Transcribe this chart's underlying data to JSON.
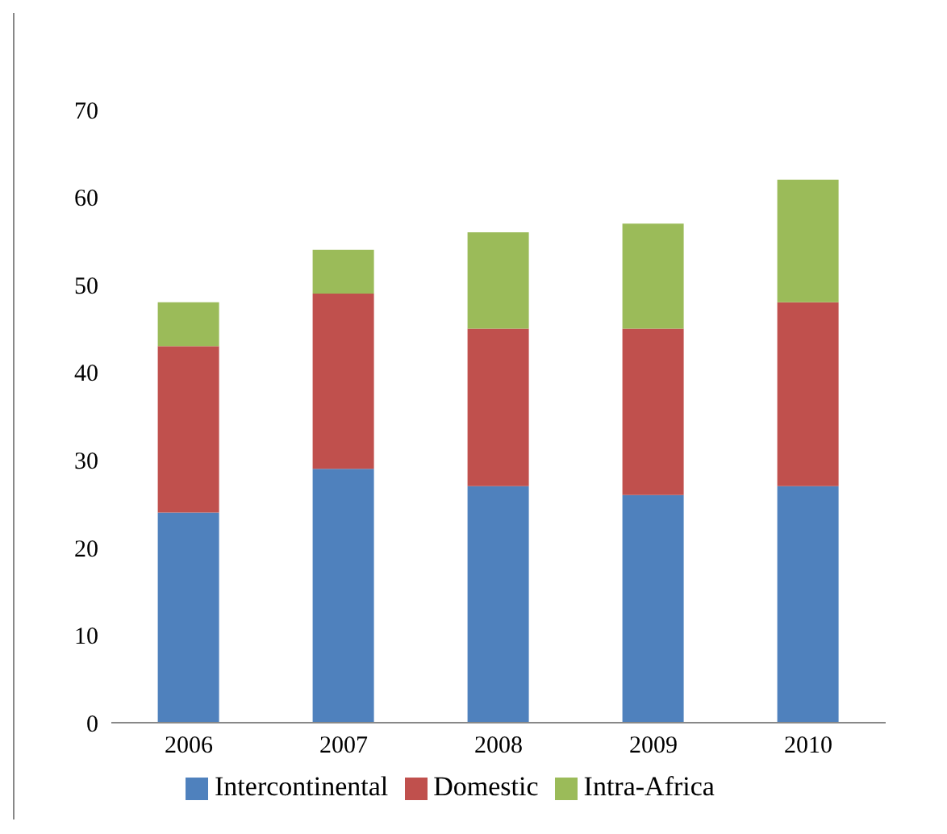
{
  "chart_data": {
    "type": "bar",
    "stacked": true,
    "categories": [
      "2006",
      "2007",
      "2008",
      "2009",
      "2010"
    ],
    "series": [
      {
        "name": "Intercontinental",
        "color": "#4f81bd",
        "values": [
          24,
          29,
          27,
          26,
          27
        ]
      },
      {
        "name": "Domestic",
        "color": "#c0504d",
        "values": [
          19,
          20,
          18,
          19,
          21
        ]
      },
      {
        "name": "Intra-Africa",
        "color": "#9bbb59",
        "values": [
          5,
          5,
          11,
          12,
          14
        ]
      }
    ],
    "ylim": [
      0,
      70
    ],
    "yticks": [
      0,
      10,
      20,
      30,
      40,
      50,
      60,
      70
    ],
    "grid": false,
    "legend": "bottom"
  }
}
